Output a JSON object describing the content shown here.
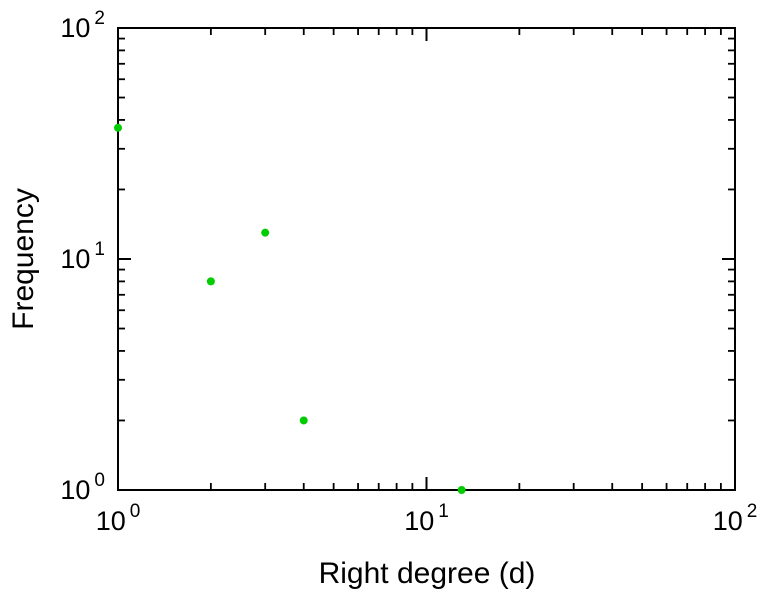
{
  "chart_data": {
    "type": "scatter",
    "title": "",
    "xlabel": "Right degree (d)",
    "ylabel": "Frequency",
    "xscale": "log",
    "yscale": "log",
    "xlim": [
      1,
      100
    ],
    "ylim": [
      1,
      100
    ],
    "grid": false,
    "legend": "none",
    "tick_base": "10",
    "x_tick_exponents": [
      0,
      1,
      2
    ],
    "y_tick_exponents": [
      0,
      1,
      2
    ],
    "minor_tick_mantissas": [
      2,
      3,
      4,
      5,
      6,
      7,
      8,
      9
    ],
    "points": [
      {
        "x": 1,
        "y": 37
      },
      {
        "x": 2,
        "y": 8
      },
      {
        "x": 3,
        "y": 13
      },
      {
        "x": 4,
        "y": 2
      },
      {
        "x": 13,
        "y": 1
      }
    ],
    "point_color": "#00cc00",
    "axis_color": "#000000",
    "background_color": "#ffffff"
  }
}
